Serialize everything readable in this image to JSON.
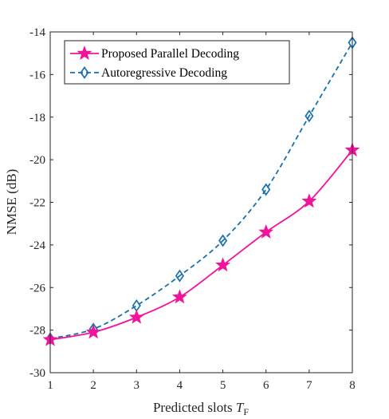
{
  "chart_data": {
    "type": "line",
    "xlabel": "Predicted slots ",
    "xlabel_symbol": "T",
    "xlabel_subscript": "F",
    "ylabel": "NMSE (dB)",
    "x": [
      1,
      2,
      3,
      4,
      5,
      6,
      7,
      8
    ],
    "xlim": [
      1,
      8
    ],
    "ylim": [
      -30,
      -14
    ],
    "xticks": [
      "1",
      "2",
      "3",
      "4",
      "5",
      "6",
      "7",
      "8"
    ],
    "yticks": [
      "-30",
      "-28",
      "-26",
      "-24",
      "-22",
      "-20",
      "-18",
      "-16",
      "-14"
    ],
    "grid": false,
    "legend_position": "top-left",
    "series": [
      {
        "name": "Proposed Parallel Decoding",
        "color": "#f0149b",
        "line_style": "solid",
        "marker": "star",
        "values": [
          -28.45,
          -28.1,
          -27.4,
          -26.45,
          -24.95,
          -23.4,
          -21.95,
          -19.55
        ]
      },
      {
        "name": "Autoregressive Decoding",
        "color": "#1b6fab",
        "line_style": "dashed",
        "marker": "diamond",
        "values": [
          -28.4,
          -27.95,
          -26.85,
          -25.45,
          -23.8,
          -21.4,
          -17.95,
          -14.5
        ]
      }
    ]
  }
}
